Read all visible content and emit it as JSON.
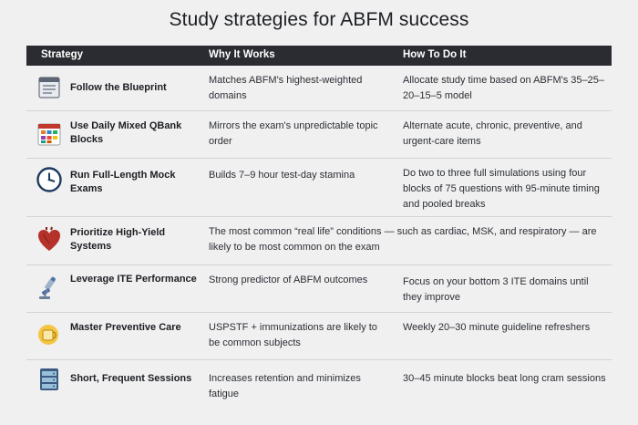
{
  "title": "Study strategies for ABFM success",
  "columns": [
    "Strategy",
    "Why It Works",
    "How To Do It"
  ],
  "rows": [
    {
      "icon": "blueprint-document-icon",
      "strategy": "Follow the Blueprint",
      "why": "Matches ABFM's highest-weighted domains",
      "how": "Allocate study time based on ABFM's 35–25–20–15–5 model"
    },
    {
      "icon": "calendar-grid-icon",
      "strategy": "Use Daily Mixed QBank Blocks",
      "why": "Mirrors the exam's unpredictable topic order",
      "how": "Alternate acute, chronic, preventive, and urgent-care items"
    },
    {
      "icon": "clock-icon",
      "strategy": "Run Full-Length Mock Exams",
      "why": "Builds 7–9 hour test-day stamina",
      "how": "Do two to three full simulations using four blocks of 75 questions with 95-minute timing and pooled breaks"
    },
    {
      "icon": "heart-icon",
      "strategy": "Prioritize High-Yield Systems",
      "why": "The most common “real life” conditions — such as cardiac, MSK, and respiratory — are likely to be most common on the exam",
      "how": ""
    },
    {
      "icon": "microscope-icon",
      "strategy": "Leverage ITE Performance",
      "why": "Strong predictor of ABFM outcomes",
      "how": "Focus on your bottom 3 ITE domains until they improve"
    },
    {
      "icon": "coffee-mug-icon",
      "strategy": "Master Preventive Care",
      "why": "USPSTF + immunizations are likely to be common subjects",
      "how": "Weekly 20–30 minute guideline refreshers"
    },
    {
      "icon": "server-stack-icon",
      "strategy": "Short, Frequent Sessions",
      "why": "Increases retention and minimizes fatigue",
      "how": "30–45 minute blocks beat long cram sessions"
    }
  ]
}
